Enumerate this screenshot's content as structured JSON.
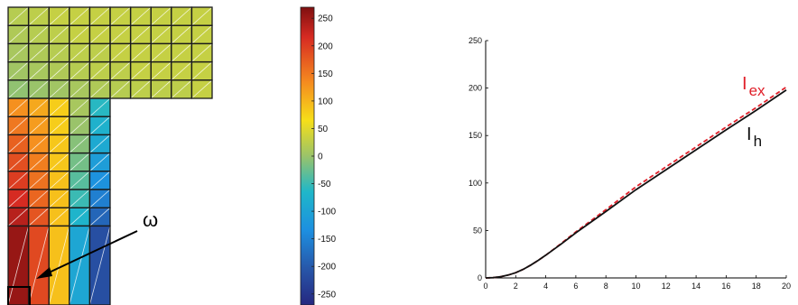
{
  "chart_data": [
    {
      "type": "heatmap",
      "title": "",
      "domain_label": "ω",
      "grid_top": [
        [
          20,
          25,
          30,
          30,
          30,
          30,
          30,
          30,
          30,
          30
        ],
        [
          15,
          20,
          25,
          30,
          30,
          30,
          30,
          30,
          30,
          30
        ],
        [
          10,
          15,
          20,
          25,
          25,
          30,
          30,
          30,
          30,
          30
        ],
        [
          5,
          10,
          15,
          20,
          25,
          25,
          30,
          30,
          30,
          30
        ],
        [
          -5,
          0,
          5,
          10,
          15,
          20,
          25,
          25,
          25,
          30
        ]
      ],
      "grid_bottom": [
        [
          130,
          110,
          80,
          10,
          -60
        ],
        [
          150,
          120,
          80,
          0,
          -75
        ],
        [
          170,
          130,
          85,
          -10,
          -90
        ],
        [
          185,
          145,
          85,
          -20,
          -110
        ],
        [
          200,
          155,
          90,
          -35,
          -130
        ],
        [
          215,
          165,
          90,
          -50,
          -155
        ],
        [
          235,
          180,
          90,
          -70,
          -185
        ],
        [
          255,
          190,
          90,
          -95,
          -215
        ]
      ],
      "colorbar": {
        "min": -270,
        "max": 270,
        "ticks": [
          "250",
          "200",
          "150",
          "100",
          "50",
          "0",
          "-50",
          "-100",
          "-150",
          "-200",
          "-250"
        ]
      }
    },
    {
      "type": "line",
      "title": "",
      "xlabel": "",
      "ylabel": "",
      "xlim": [
        0,
        20
      ],
      "ylim": [
        0,
        250
      ],
      "x_ticks": [
        "0",
        "2",
        "4",
        "6",
        "8",
        "10",
        "12",
        "14",
        "16",
        "18",
        "20"
      ],
      "y_ticks": [
        "0",
        "50",
        "100",
        "150",
        "200",
        "250"
      ],
      "series": [
        {
          "name": "I_ex",
          "label_main": "I",
          "label_sub": "ex",
          "color": "#e0202a",
          "style": "dashed",
          "x": [
            0,
            0.5,
            1,
            1.5,
            2,
            2.5,
            3,
            3.5,
            4,
            5,
            6,
            8,
            10,
            12,
            14,
            16,
            18,
            20
          ],
          "y": [
            0,
            0.3,
            1.3,
            3,
            5.5,
            9,
            13.5,
            18.5,
            24,
            36,
            48.5,
            72,
            96,
            117,
            138,
            159,
            179.5,
            201
          ]
        },
        {
          "name": "I_h",
          "label_main": "I",
          "label_sub": "h",
          "color": "#111111",
          "style": "solid",
          "x": [
            0,
            0.5,
            1,
            1.5,
            2,
            2.5,
            3,
            3.5,
            4,
            5,
            6,
            8,
            10,
            12,
            14,
            16,
            18,
            20
          ],
          "y": [
            0,
            0.3,
            1.3,
            3,
            5.5,
            9,
            13.5,
            18.5,
            24,
            35.5,
            47.5,
            70,
            93,
            114,
            135,
            156,
            176.5,
            198
          ]
        }
      ]
    }
  ]
}
